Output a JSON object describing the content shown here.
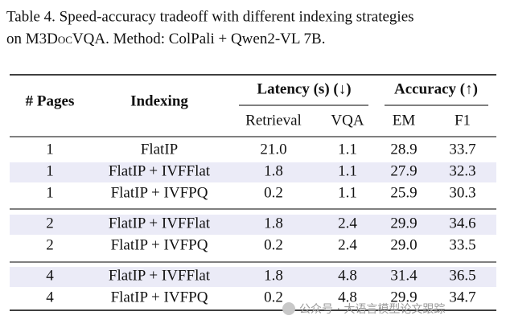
{
  "caption": {
    "prefix": "Table 4. Speed-accuracy tradeoff with different indexing strategies",
    "line2_start": "on ",
    "dataset": "M3DocVQA",
    "line2_end": ". Method: ColPali + Qwen2-VL 7B."
  },
  "table": {
    "header": {
      "pages": "# Pages",
      "indexing": "Indexing",
      "latency": "Latency (s) (↓)",
      "accuracy": "Accuracy (↑)",
      "sub": [
        "Retrieval",
        "VQA",
        "EM",
        "F1"
      ]
    },
    "groups": [
      [
        [
          "1",
          "FlatIP",
          "21.0",
          "1.1",
          "28.9",
          "33.7"
        ],
        [
          "1",
          "FlatIP + IVFFlat",
          "1.8",
          "1.1",
          "27.9",
          "32.3"
        ],
        [
          "1",
          "FlatIP + IVFPQ",
          "0.2",
          "1.1",
          "25.9",
          "30.3"
        ]
      ],
      [
        [
          "2",
          "FlatIP + IVFFlat",
          "1.8",
          "2.4",
          "29.9",
          "34.6"
        ],
        [
          "2",
          "FlatIP + IVFPQ",
          "0.2",
          "2.4",
          "29.0",
          "33.5"
        ]
      ],
      [
        [
          "4",
          "FlatIP + IVFFlat",
          "1.8",
          "4.8",
          "31.4",
          "36.5"
        ],
        [
          "4",
          "FlatIP + IVFPQ",
          "0.2",
          "4.8",
          "29.9",
          "34.7"
        ]
      ]
    ]
  },
  "watermark": "公众号 · 大语言模型论文跟踪"
}
